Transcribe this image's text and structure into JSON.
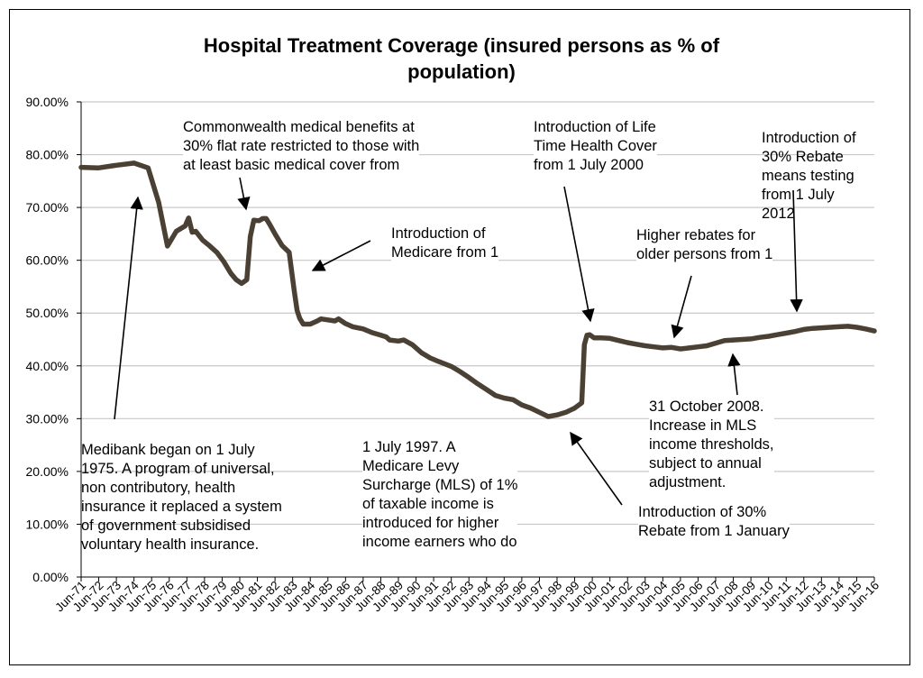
{
  "colors": {
    "line": "#4a4034",
    "grid": "#c8c8c8",
    "axis": "#000000",
    "arrow": "#000000"
  },
  "chart_data": {
    "type": "line",
    "title_lines": [
      "Hospital Treatment Coverage (insured persons as % of",
      "population)"
    ],
    "title": "Hospital Treatment Coverage (insured persons as % of population)",
    "xlabel": "",
    "ylabel": "",
    "ylim": [
      0,
      90
    ],
    "y_ticks": [
      "0.00%",
      "10.00%",
      "20.00%",
      "30.00%",
      "40.00%",
      "50.00%",
      "60.00%",
      "70.00%",
      "80.00%",
      "90.00%"
    ],
    "x_ticks": [
      "Jun-71",
      "Jun-72",
      "Jun-73",
      "Jun-74",
      "Jun-75",
      "Jun-76",
      "Jun-77",
      "Jun-78",
      "Jun-79",
      "Jun-80",
      "Jun-81",
      "Jun-82",
      "Jun-83",
      "Jun-84",
      "Jun-85",
      "Jun-86",
      "Jun-87",
      "Jun-88",
      "Jun-89",
      "Jun-90",
      "Jun-91",
      "Jun-92",
      "Jun-93",
      "Jun-94",
      "Jun-95",
      "Jun-96",
      "Jun-97",
      "Jun-98",
      "Jun-99",
      "Jun-00",
      "Jun-01",
      "Jun-02",
      "Jun-03",
      "Jun-04",
      "Jun-05",
      "Jun-06",
      "Jun-07",
      "Jun-08",
      "Jun-09",
      "Jun-10",
      "Jun-11",
      "Jun-12",
      "Jun-13",
      "Jun-14",
      "Jun-15",
      "Jun-16"
    ],
    "grid": true,
    "legend": "none",
    "series": [
      {
        "x": [
          1971.5,
          1972.5,
          1973.5,
          1974.5,
          1975.3,
          1975.9,
          1976.4,
          1976.9,
          1977.4,
          1977.6,
          1977.8,
          1978.0,
          1978.4,
          1978.8,
          1979.2,
          1979.6,
          1980.0,
          1980.3,
          1980.6,
          1980.9,
          1981.1,
          1981.3,
          1981.6,
          1981.8,
          1982.0,
          1982.2,
          1982.5,
          1982.9,
          1983.3,
          1983.6,
          1983.75,
          1983.9,
          1984.1,
          1984.5,
          1984.9,
          1985.1,
          1985.5,
          1985.9,
          1986.1,
          1986.5,
          1986.9,
          1987.5,
          1988.0,
          1988.5,
          1988.8,
          1989.0,
          1989.5,
          1989.8,
          1990.3,
          1990.8,
          1991.3,
          1991.8,
          1992.5,
          1993.0,
          1993.5,
          1994.0,
          1994.5,
          1995.0,
          1995.5,
          1996.0,
          1996.5,
          1997.0,
          1997.5,
          1998.0,
          1998.5,
          1999.0,
          1999.5,
          1999.9,
          2000.05,
          2000.2,
          2000.35,
          2000.6,
          2001.0,
          2001.5,
          2002.0,
          2002.5,
          2003.0,
          2003.5,
          2004.0,
          2004.5,
          2005.0,
          2005.5,
          2006.0,
          2006.5,
          2007.0,
          2007.5,
          2008.0,
          2008.5,
          2009.0,
          2009.5,
          2010.0,
          2010.5,
          2011.0,
          2011.5,
          2012.0,
          2012.5,
          2013.0,
          2013.5,
          2014.0,
          2014.5,
          2015.0,
          2015.5,
          2016.0,
          2016.5
        ],
        "y": [
          77.6,
          77.5,
          78.0,
          78.4,
          77.5,
          71.0,
          62.7,
          65.5,
          66.5,
          68.0,
          65.3,
          65.5,
          63.8,
          62.7,
          61.5,
          59.7,
          57.5,
          56.3,
          55.6,
          56.3,
          64.5,
          67.6,
          67.5,
          67.9,
          67.9,
          66.8,
          65.0,
          62.8,
          61.5,
          54.0,
          50.5,
          49.0,
          47.9,
          47.9,
          48.5,
          48.9,
          48.7,
          48.5,
          48.9,
          48.0,
          47.4,
          47.0,
          46.3,
          45.8,
          45.5,
          44.9,
          44.7,
          44.9,
          44.0,
          42.5,
          41.5,
          40.8,
          39.9,
          38.9,
          37.8,
          36.6,
          35.5,
          34.4,
          33.9,
          33.6,
          32.6,
          32.0,
          31.2,
          30.4,
          30.7,
          31.2,
          32.0,
          33.0,
          44.0,
          45.8,
          45.9,
          45.3,
          45.3,
          45.2,
          44.8,
          44.4,
          44.1,
          43.8,
          43.6,
          43.4,
          43.5,
          43.2,
          43.4,
          43.6,
          43.8,
          44.3,
          44.8,
          44.9,
          45.0,
          45.1,
          45.4,
          45.6,
          45.9,
          46.2,
          46.5,
          46.9,
          47.1,
          47.2,
          47.3,
          47.4,
          47.5,
          47.3,
          47.0,
          46.6
        ]
      }
    ],
    "annotations": [
      {
        "id": "medibank",
        "text": "Medibank began on 1 July\n1975.  A program of universal,\nnon contributory, health\ninsurance it replaced a system\nof government subsidised\nvoluntary health insurance."
      },
      {
        "id": "commonwealth",
        "text": "Commonwealth medical benefits at\n30% flat rate restricted to those with\nat least basic medical cover from"
      },
      {
        "id": "medicare",
        "text": "Introduction of\nMedicare from 1"
      },
      {
        "id": "lifetime",
        "text": "Introduction of Life\nTime Health Cover\nfrom 1 July 2000"
      },
      {
        "id": "rebate-testing",
        "text": "Introduction of\n30% Rebate\nmeans testing\nfrom 1 July\n2012"
      },
      {
        "id": "older-rebates",
        "text": "Higher rebates for\nolder persons from 1"
      },
      {
        "id": "mls",
        "text": "1 July 1997. A\nMedicare Levy\nSurcharge (MLS) of 1%\nof taxable income is\nintroduced for higher\nincome earners who do"
      },
      {
        "id": "oct-2008",
        "text": "31 October 2008.\nIncrease in MLS\nincome thresholds,\nsubject to annual\nadjustment."
      },
      {
        "id": "rebate-30",
        "text": "Introduction of 30%\nRebate from 1 January"
      }
    ]
  }
}
